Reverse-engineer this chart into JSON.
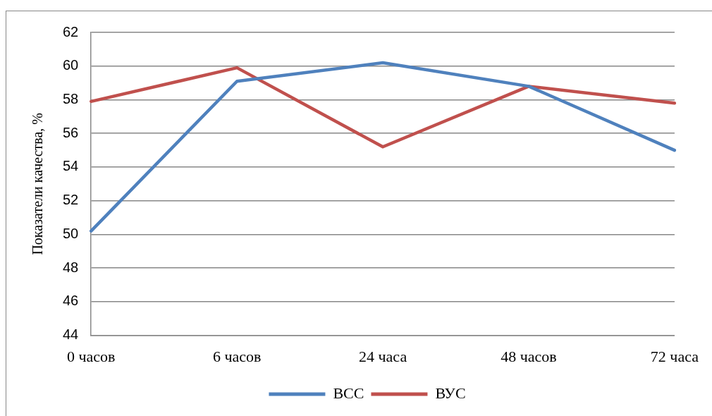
{
  "chart_data": {
    "type": "line",
    "ylabel": "Показатели качества, %",
    "categories": [
      "0 часов",
      "6 часов",
      "24 часа",
      "48 часов",
      "72 часа"
    ],
    "series": [
      {
        "name": "ВСС",
        "color": "#4f81bd",
        "values": [
          50.2,
          59.1,
          60.2,
          58.8,
          55.0
        ]
      },
      {
        "name": "ВУС",
        "color": "#c0504d",
        "values": [
          57.9,
          59.9,
          55.2,
          58.8,
          57.8
        ]
      }
    ],
    "ylim": [
      44,
      62
    ],
    "yticks": [
      44,
      46,
      48,
      50,
      52,
      54,
      56,
      58,
      60,
      62
    ],
    "grid": "y",
    "legend": "bottom",
    "marker": "none",
    "line_style": "solid"
  }
}
